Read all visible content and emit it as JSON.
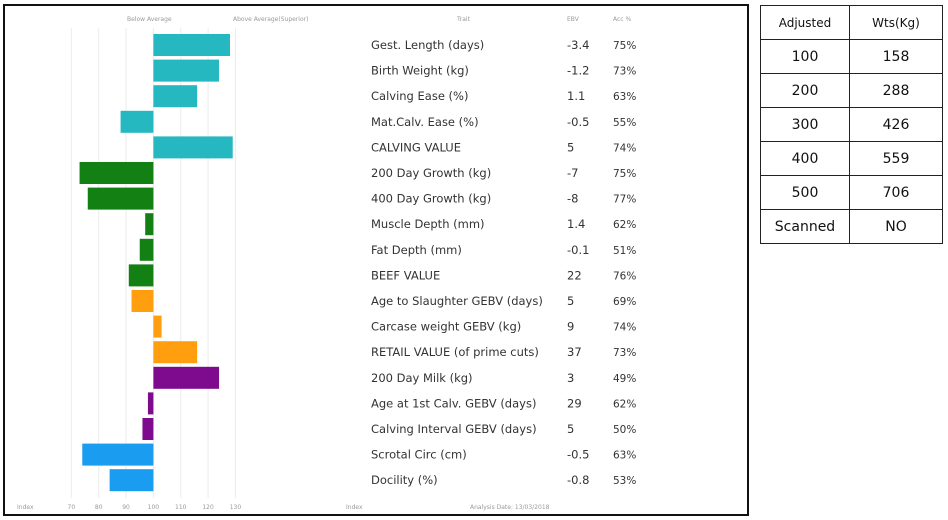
{
  "chart_data": {
    "type": "bar",
    "orientation": "horizontal",
    "header": {
      "below_label": "Below Average",
      "above_label": "Above Average(Superior)",
      "trait_label": "Trait",
      "ebv_label": "EBV",
      "acc_label": "Acc %"
    },
    "footer": {
      "index_label": "Index",
      "breed_label": "Index",
      "analysis_date": "Analysis Date: 13/03/2018"
    },
    "x_ticks": [
      "70",
      "80",
      "90",
      "100",
      "110",
      "120",
      "130"
    ],
    "xlim": [
      60,
      140
    ],
    "baseline": 100,
    "grid": true,
    "categories": [
      "Gest. Length (days)",
      "Birth Weight (kg)",
      "Calving Ease (%)",
      "Mat.Calv. Ease (%)",
      "CALVING VALUE",
      "200 Day Growth (kg)",
      "400 Day Growth (kg)",
      "Muscle Depth (mm)",
      "Fat Depth (mm)",
      "BEEF VALUE",
      "Age to Slaughter GEBV (days)",
      "Carcase weight GEBV (kg)",
      "RETAIL VALUE (of prime cuts)",
      "200 Day Milk (kg)",
      "Age at 1st Calv. GEBV (days)",
      "Calving Interval GEBV (days)",
      "Scrotal Circ (cm)",
      "Docility (%)"
    ],
    "ebv": [
      "-3.4",
      "-1.2",
      "1.1",
      "-0.5",
      "5",
      "-7",
      "-8",
      "1.4",
      "-0.1",
      "22",
      "5",
      "9",
      "37",
      "3",
      "29",
      "5",
      "-0.5",
      "-0.8"
    ],
    "acc": [
      "75%",
      "73%",
      "63%",
      "55%",
      "74%",
      "75%",
      "77%",
      "62%",
      "51%",
      "76%",
      "69%",
      "74%",
      "73%",
      "49%",
      "62%",
      "50%",
      "63%",
      "53%"
    ],
    "index_values": [
      128,
      124,
      116,
      88,
      129,
      73,
      76,
      97,
      95,
      91,
      92,
      103,
      116,
      124,
      98,
      96,
      74,
      84
    ],
    "bar_colors": [
      "#25b8c1",
      "#25b8c1",
      "#25b8c1",
      "#25b8c1",
      "#25b8c1",
      "#128012",
      "#128012",
      "#128012",
      "#128012",
      "#128012",
      "#ff9f10",
      "#ff9f10",
      "#ff9f10",
      "#7e0a8e",
      "#7e0a8e",
      "#7e0a8e",
      "#1a9cf0",
      "#1a9cf0"
    ]
  },
  "weights_table": {
    "header": [
      "Adjusted",
      "Wts(Kg)"
    ],
    "rows": [
      [
        "100",
        "158"
      ],
      [
        "200",
        "288"
      ],
      [
        "300",
        "426"
      ],
      [
        "400",
        "559"
      ],
      [
        "500",
        "706"
      ],
      [
        "Scanned",
        "NO"
      ]
    ]
  }
}
